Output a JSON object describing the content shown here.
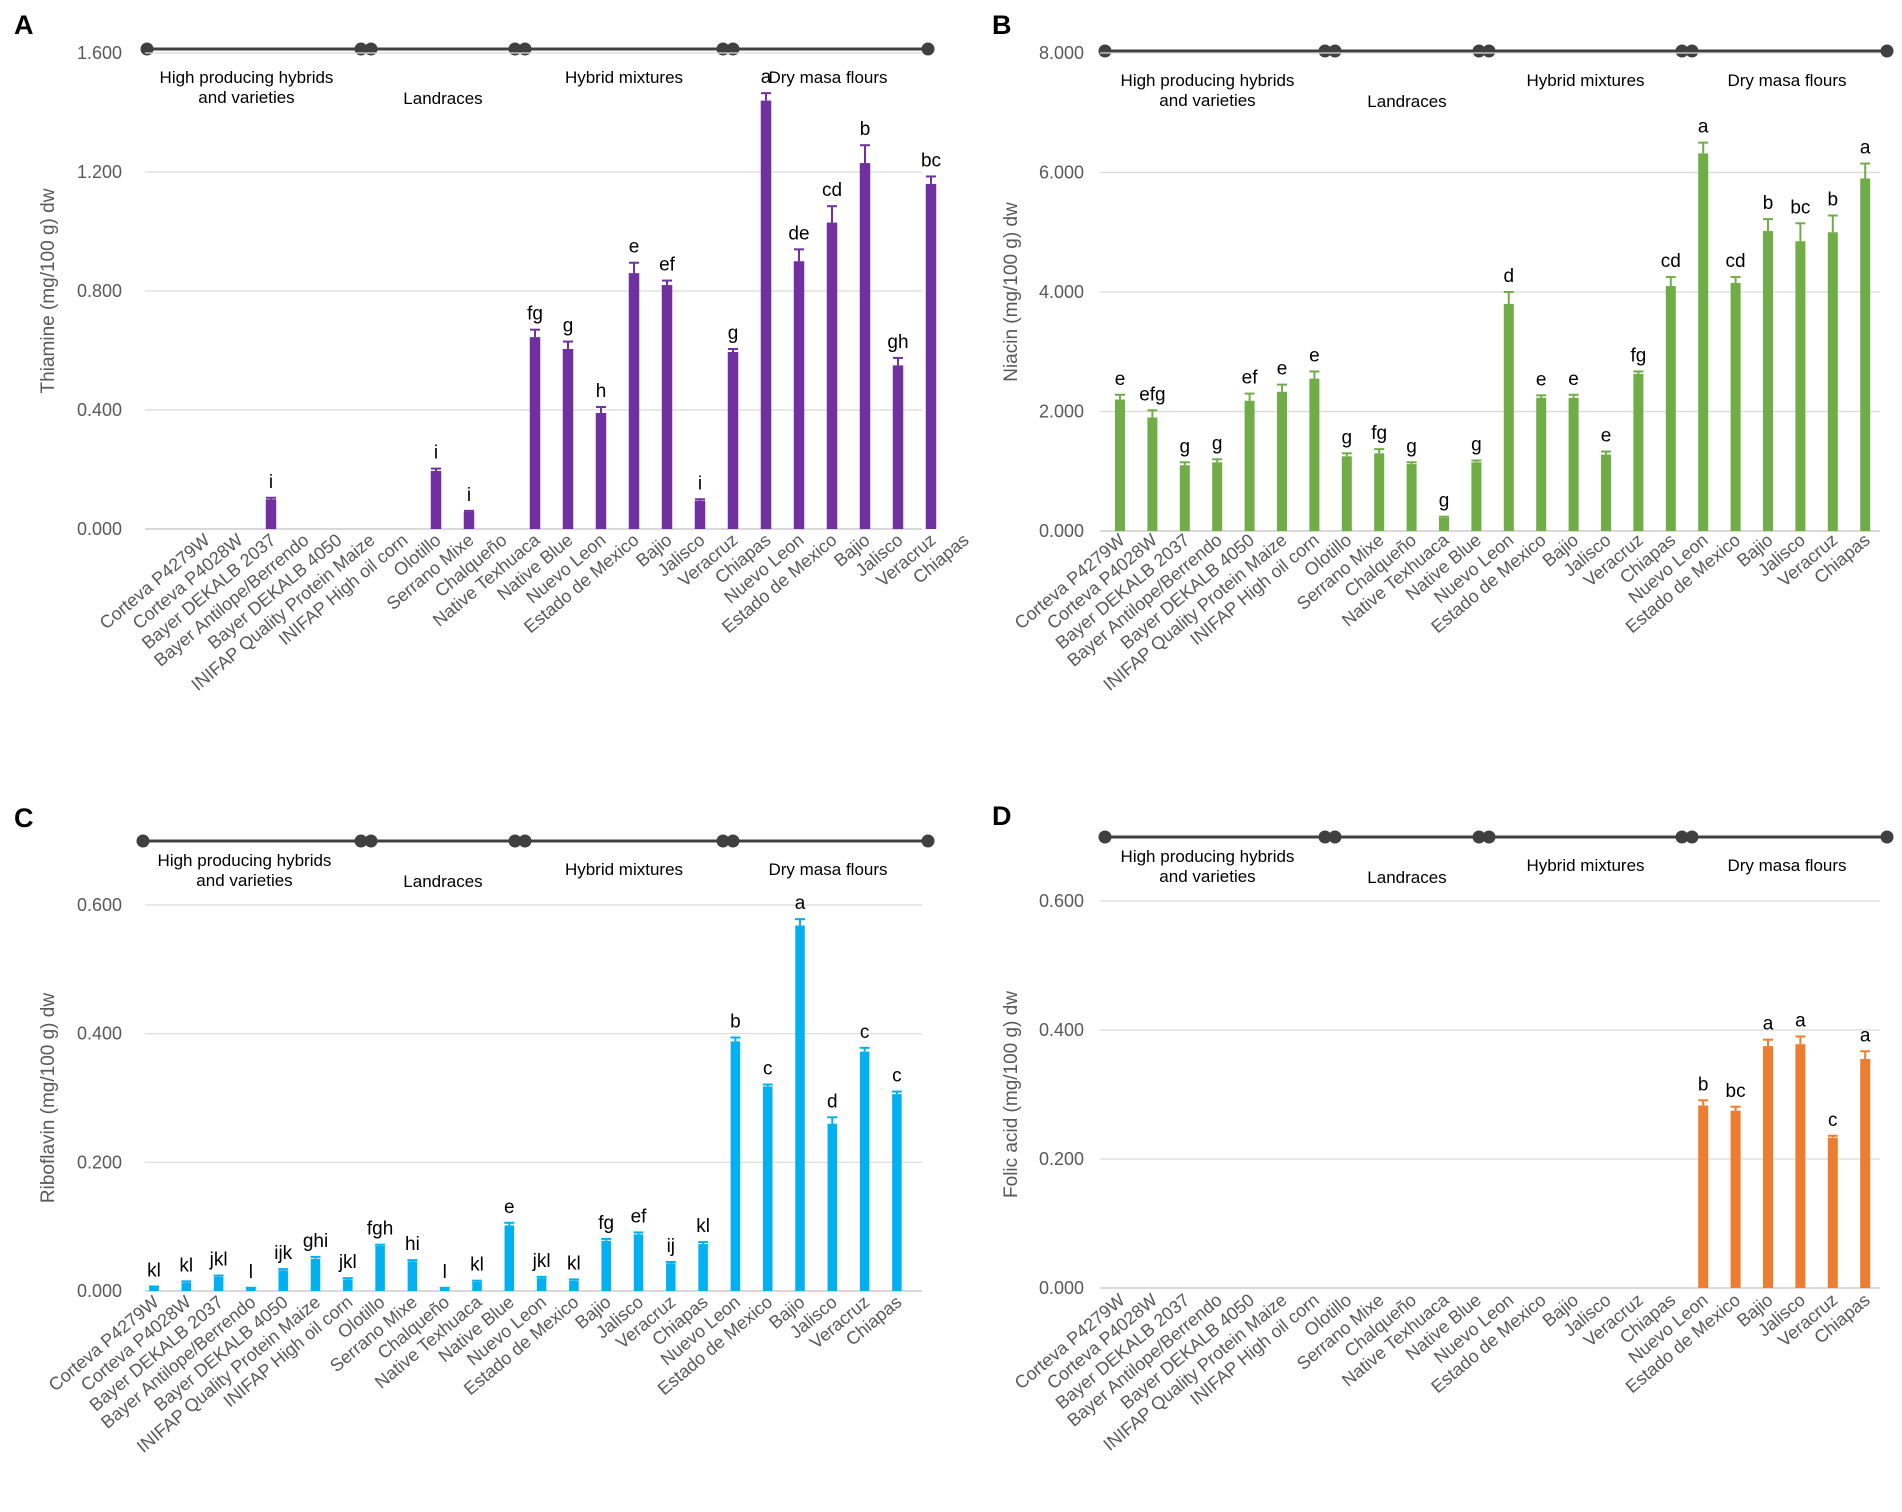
{
  "colors": {
    "A": "#7030a0",
    "B": "#70ad47",
    "C": "#00b0f0",
    "D": "#ed7d31",
    "grid": "#d9d9d9",
    "axis": "#595959",
    "timeline": "#404040"
  },
  "categories": [
    "Corteva P4279W",
    "Corteva P4028W",
    "Bayer DEKALB 2037",
    "Bayer Antilope/Berrendo",
    "Bayer DEKALB 4050",
    "INIFAP Quality Protein Maize",
    "INIFAP High oil corn",
    "Olotillo",
    "Serrano Mixe",
    "Chalqueño",
    "Native Texhuaca",
    "Native Blue",
    "Nuevo Leon",
    "Estado de Mexico",
    "Bajio",
    "Jalisco",
    "Veracruz",
    "Chiapas",
    "Nuevo Leon",
    "Estado de Mexico",
    "Bajio",
    "Jalisco",
    "Veracruz",
    "Chiapas"
  ],
  "groups": [
    {
      "label": "High producing hybrids\nand varieties"
    },
    {
      "label": "Landraces"
    },
    {
      "label": "Hybrid mixtures"
    },
    {
      "label": "Dry masa flours"
    }
  ],
  "chart_data": [
    {
      "panel": "A",
      "type": "bar",
      "ylabel": "Thiamine (mg/100 g) dw",
      "ylim": [
        0,
        1.6
      ],
      "yticks": [
        "0.000",
        "0.400",
        "0.800",
        "1.200",
        "1.600"
      ],
      "grid": true,
      "values": [
        0,
        0,
        0.1,
        0,
        0,
        0,
        0,
        0.195,
        0.058,
        0,
        0.645,
        0.605,
        0.39,
        0.86,
        0.82,
        0.095,
        0.595,
        1.44,
        0.9,
        1.03,
        1.23,
        0.55,
        1.16,
        null
      ],
      "errors": [
        0,
        0,
        0.005,
        0,
        0,
        0,
        0,
        0.008,
        0.003,
        0,
        0.025,
        0.025,
        0.02,
        0.035,
        0.015,
        0.005,
        0.01,
        0.025,
        0.04,
        0.055,
        0.06,
        0.025,
        0.025,
        null
      ],
      "letters": [
        "",
        "",
        "i",
        "",
        "",
        "",
        "",
        "i",
        "i",
        "",
        "fg",
        "g",
        "h",
        "e",
        "ef",
        "i",
        "g",
        "a",
        "de",
        "cd",
        "b",
        "gh",
        "bc",
        ""
      ]
    },
    {
      "panel": "B",
      "type": "bar",
      "ylabel": "Niacin (mg/100 g) dw",
      "ylim": [
        0,
        8
      ],
      "yticks": [
        "0.000",
        "2.000",
        "4.000",
        "6.000",
        "8.000"
      ],
      "grid": true,
      "values": [
        2.2,
        1.9,
        1.1,
        1.15,
        2.18,
        2.33,
        2.55,
        1.25,
        1.3,
        1.12,
        0.22,
        1.15,
        3.8,
        2.23,
        2.23,
        1.28,
        2.63,
        4.1,
        6.32,
        4.15,
        5.02,
        4.85,
        5.0,
        5.9
      ],
      "errors": [
        0.08,
        0.12,
        0.05,
        0.05,
        0.12,
        0.12,
        0.12,
        0.05,
        0.07,
        0.03,
        0.02,
        0.03,
        0.2,
        0.04,
        0.05,
        0.05,
        0.04,
        0.15,
        0.18,
        0.1,
        0.2,
        0.3,
        0.28,
        0.25
      ],
      "letters": [
        "e",
        "efg",
        "g",
        "g",
        "ef",
        "e",
        "e",
        "g",
        "fg",
        "g",
        "g",
        "g",
        "d",
        "e",
        "e",
        "e",
        "fg",
        "cd",
        "a",
        "cd",
        "b",
        "bc",
        "b",
        "a"
      ]
    },
    {
      "panel": "C",
      "type": "bar",
      "ylabel": "Riboflavin (mg/100 g) dw",
      "ylim": [
        0,
        0.6
      ],
      "yticks": [
        "0.000",
        "0.200",
        "0.400",
        "0.600"
      ],
      "grid": true,
      "values": [
        0.006,
        0.013,
        0.022,
        0.004,
        0.032,
        0.05,
        0.018,
        0.07,
        0.046,
        0.004,
        0.014,
        0.102,
        0.02,
        0.016,
        0.078,
        0.088,
        0.043,
        0.073,
        0.388,
        0.318,
        0.568,
        0.26,
        0.372,
        0.306
      ],
      "errors": [
        0.001,
        0.002,
        0.002,
        0.001,
        0.002,
        0.003,
        0.002,
        0.002,
        0.002,
        0.001,
        0.002,
        0.004,
        0.002,
        0.002,
        0.003,
        0.003,
        0.002,
        0.003,
        0.006,
        0.003,
        0.01,
        0.01,
        0.006,
        0.004
      ],
      "letters": [
        "kl",
        "kl",
        "jkl",
        "l",
        "ijk",
        "ghi",
        "jkl",
        "fgh",
        "hi",
        "l",
        "kl",
        "e",
        "jkl",
        "kl",
        "fg",
        "ef",
        "ij",
        "kl",
        "b",
        "c",
        "a",
        "d",
        "c",
        "c"
      ]
    },
    {
      "panel": "D",
      "type": "bar",
      "ylabel": "Folic acid (mg/100 g) dw",
      "ylim": [
        0,
        0.6
      ],
      "yticks": [
        "0.000",
        "0.200",
        "0.400",
        "0.600"
      ],
      "grid": true,
      "values": [
        0,
        0,
        0,
        0,
        0,
        0,
        0,
        0,
        0,
        0,
        0,
        0,
        0,
        0,
        0,
        0,
        0,
        0,
        0.283,
        0.275,
        0.375,
        0.378,
        0.233,
        0.355
      ],
      "errors": [
        0,
        0,
        0,
        0,
        0,
        0,
        0,
        0,
        0,
        0,
        0,
        0,
        0,
        0,
        0,
        0,
        0,
        0,
        0.008,
        0.006,
        0.01,
        0.012,
        0.003,
        0.012
      ],
      "letters": [
        "",
        "",
        "",
        "",
        "",
        "",
        "",
        "",
        "",
        "",
        "",
        "",
        "",
        "",
        "",
        "",
        "",
        "",
        "b",
        "bc",
        "a",
        "a",
        "c",
        "a"
      ]
    }
  ]
}
